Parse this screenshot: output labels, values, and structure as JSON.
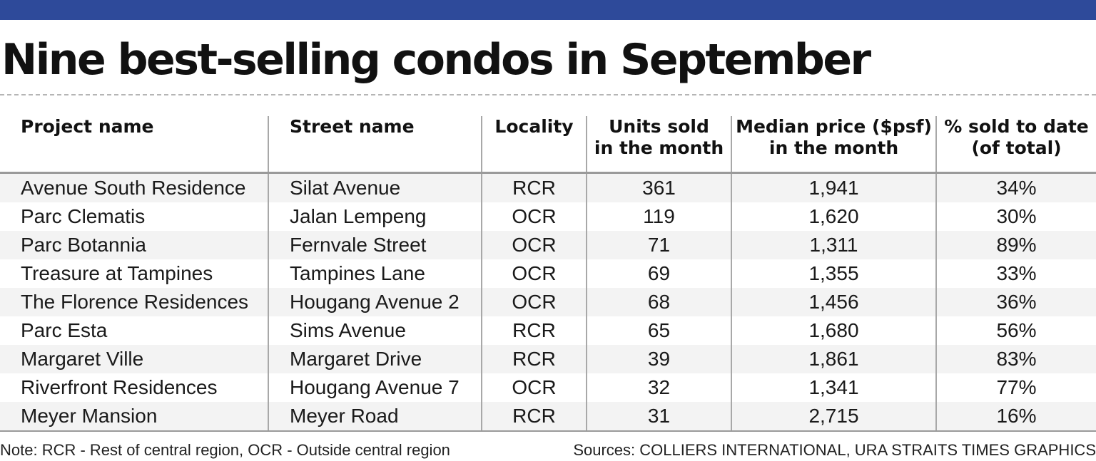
{
  "title": "Nine best-selling condos in September",
  "accent_color": "#2e4a9a",
  "chart_data": {
    "type": "table",
    "title": "Nine best-selling condos in September",
    "columns": [
      {
        "line1": "Project name",
        "line2": ""
      },
      {
        "line1": "Street name",
        "line2": ""
      },
      {
        "line1": "Locality",
        "line2": ""
      },
      {
        "line1": "Units sold",
        "line2": "in the month"
      },
      {
        "line1": "Median price ($psf)",
        "line2": "in the month"
      },
      {
        "line1": "% sold to date",
        "line2": "(of total)"
      }
    ],
    "rows": [
      [
        "Avenue South Residence",
        "Silat Avenue",
        "RCR",
        "361",
        "1,941",
        "34%"
      ],
      [
        "Parc Clematis",
        "Jalan Lempeng",
        "OCR",
        "119",
        "1,620",
        "30%"
      ],
      [
        "Parc Botannia",
        "Fernvale Street",
        "OCR",
        "71",
        "1,311",
        "89%"
      ],
      [
        "Treasure at Tampines",
        "Tampines Lane",
        "OCR",
        "69",
        "1,355",
        "33%"
      ],
      [
        "The Florence Residences",
        "Hougang Avenue 2",
        "OCR",
        "68",
        "1,456",
        "36%"
      ],
      [
        "Parc Esta",
        "Sims Avenue",
        "RCR",
        "65",
        "1,680",
        "56%"
      ],
      [
        "Margaret Ville",
        "Margaret Drive",
        "RCR",
        "39",
        "1,861",
        "83%"
      ],
      [
        "Riverfront Residences",
        "Hougang Avenue 7",
        "OCR",
        "32",
        "1,341",
        "77%"
      ],
      [
        "Meyer Mansion",
        "Meyer Road",
        "RCR",
        "31",
        "2,715",
        "16%"
      ]
    ]
  },
  "footer": {
    "note": "Note: RCR - Rest of central region, OCR - Outside central region",
    "sources": "Sources: COLLIERS INTERNATIONAL, URA   STRAITS TIMES GRAPHICS"
  }
}
